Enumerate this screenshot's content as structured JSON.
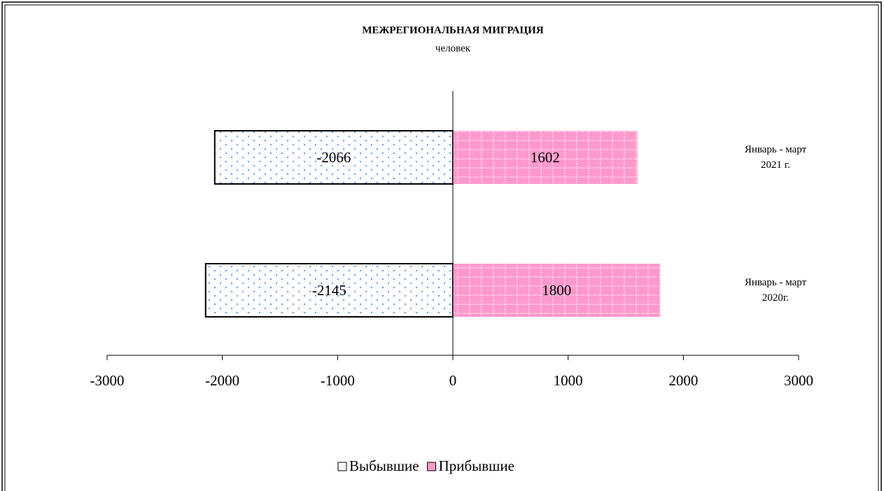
{
  "chart_data": {
    "type": "diverging-bar",
    "title": "МЕЖРЕГИОНАЛЬНАЯ МИГРАЦИЯ",
    "subtitle": "человек",
    "categories": [
      "Январь - март\n2021 г.",
      "Январь - март\n2020г."
    ],
    "series": [
      {
        "name": "Выбывшие",
        "color": "#ffffff",
        "pattern": "dots",
        "values": [
          -2066,
          -2145
        ]
      },
      {
        "name": "Прибывшие",
        "color": "#ff99cc",
        "pattern": "grid",
        "values": [
          1602,
          1800
        ]
      }
    ],
    "xlim": [
      -3000,
      3000
    ],
    "xticks": [
      -3000,
      -2000,
      -1000,
      0,
      1000,
      2000,
      3000
    ],
    "legend": "bottom"
  }
}
